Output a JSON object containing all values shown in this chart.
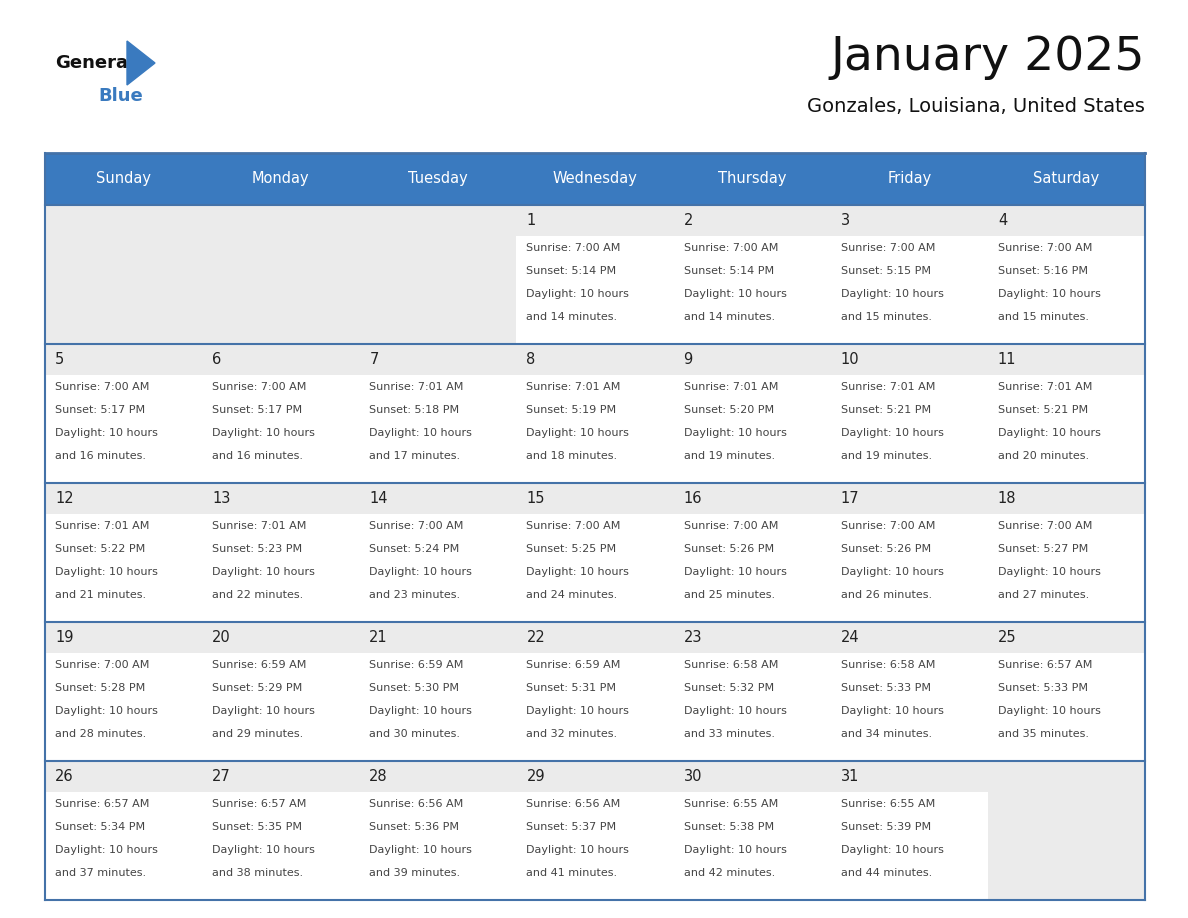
{
  "title": "January 2025",
  "subtitle": "Gonzales, Louisiana, United States",
  "header_color": "#3a7abf",
  "header_text_color": "#ffffff",
  "day_names": [
    "Sunday",
    "Monday",
    "Tuesday",
    "Wednesday",
    "Thursday",
    "Friday",
    "Saturday"
  ],
  "cell_bg_color": "#ebebeb",
  "cell_content_bg": "#ffffff",
  "border_color": "#4472a8",
  "text_color": "#333333",
  "day_num_color": "#222222",
  "logo_general_color": "#111111",
  "logo_blue_color": "#3a7abf",
  "days": [
    {
      "date": 1,
      "col": 3,
      "row": 0,
      "sunrise": "7:00 AM",
      "sunset": "5:14 PM",
      "daylight_hours": 10,
      "daylight_minutes": 14
    },
    {
      "date": 2,
      "col": 4,
      "row": 0,
      "sunrise": "7:00 AM",
      "sunset": "5:14 PM",
      "daylight_hours": 10,
      "daylight_minutes": 14
    },
    {
      "date": 3,
      "col": 5,
      "row": 0,
      "sunrise": "7:00 AM",
      "sunset": "5:15 PM",
      "daylight_hours": 10,
      "daylight_minutes": 15
    },
    {
      "date": 4,
      "col": 6,
      "row": 0,
      "sunrise": "7:00 AM",
      "sunset": "5:16 PM",
      "daylight_hours": 10,
      "daylight_minutes": 15
    },
    {
      "date": 5,
      "col": 0,
      "row": 1,
      "sunrise": "7:00 AM",
      "sunset": "5:17 PM",
      "daylight_hours": 10,
      "daylight_minutes": 16
    },
    {
      "date": 6,
      "col": 1,
      "row": 1,
      "sunrise": "7:00 AM",
      "sunset": "5:17 PM",
      "daylight_hours": 10,
      "daylight_minutes": 16
    },
    {
      "date": 7,
      "col": 2,
      "row": 1,
      "sunrise": "7:01 AM",
      "sunset": "5:18 PM",
      "daylight_hours": 10,
      "daylight_minutes": 17
    },
    {
      "date": 8,
      "col": 3,
      "row": 1,
      "sunrise": "7:01 AM",
      "sunset": "5:19 PM",
      "daylight_hours": 10,
      "daylight_minutes": 18
    },
    {
      "date": 9,
      "col": 4,
      "row": 1,
      "sunrise": "7:01 AM",
      "sunset": "5:20 PM",
      "daylight_hours": 10,
      "daylight_minutes": 19
    },
    {
      "date": 10,
      "col": 5,
      "row": 1,
      "sunrise": "7:01 AM",
      "sunset": "5:21 PM",
      "daylight_hours": 10,
      "daylight_minutes": 19
    },
    {
      "date": 11,
      "col": 6,
      "row": 1,
      "sunrise": "7:01 AM",
      "sunset": "5:21 PM",
      "daylight_hours": 10,
      "daylight_minutes": 20
    },
    {
      "date": 12,
      "col": 0,
      "row": 2,
      "sunrise": "7:01 AM",
      "sunset": "5:22 PM",
      "daylight_hours": 10,
      "daylight_minutes": 21
    },
    {
      "date": 13,
      "col": 1,
      "row": 2,
      "sunrise": "7:01 AM",
      "sunset": "5:23 PM",
      "daylight_hours": 10,
      "daylight_minutes": 22
    },
    {
      "date": 14,
      "col": 2,
      "row": 2,
      "sunrise": "7:00 AM",
      "sunset": "5:24 PM",
      "daylight_hours": 10,
      "daylight_minutes": 23
    },
    {
      "date": 15,
      "col": 3,
      "row": 2,
      "sunrise": "7:00 AM",
      "sunset": "5:25 PM",
      "daylight_hours": 10,
      "daylight_minutes": 24
    },
    {
      "date": 16,
      "col": 4,
      "row": 2,
      "sunrise": "7:00 AM",
      "sunset": "5:26 PM",
      "daylight_hours": 10,
      "daylight_minutes": 25
    },
    {
      "date": 17,
      "col": 5,
      "row": 2,
      "sunrise": "7:00 AM",
      "sunset": "5:26 PM",
      "daylight_hours": 10,
      "daylight_minutes": 26
    },
    {
      "date": 18,
      "col": 6,
      "row": 2,
      "sunrise": "7:00 AM",
      "sunset": "5:27 PM",
      "daylight_hours": 10,
      "daylight_minutes": 27
    },
    {
      "date": 19,
      "col": 0,
      "row": 3,
      "sunrise": "7:00 AM",
      "sunset": "5:28 PM",
      "daylight_hours": 10,
      "daylight_minutes": 28
    },
    {
      "date": 20,
      "col": 1,
      "row": 3,
      "sunrise": "6:59 AM",
      "sunset": "5:29 PM",
      "daylight_hours": 10,
      "daylight_minutes": 29
    },
    {
      "date": 21,
      "col": 2,
      "row": 3,
      "sunrise": "6:59 AM",
      "sunset": "5:30 PM",
      "daylight_hours": 10,
      "daylight_minutes": 30
    },
    {
      "date": 22,
      "col": 3,
      "row": 3,
      "sunrise": "6:59 AM",
      "sunset": "5:31 PM",
      "daylight_hours": 10,
      "daylight_minutes": 32
    },
    {
      "date": 23,
      "col": 4,
      "row": 3,
      "sunrise": "6:58 AM",
      "sunset": "5:32 PM",
      "daylight_hours": 10,
      "daylight_minutes": 33
    },
    {
      "date": 24,
      "col": 5,
      "row": 3,
      "sunrise": "6:58 AM",
      "sunset": "5:33 PM",
      "daylight_hours": 10,
      "daylight_minutes": 34
    },
    {
      "date": 25,
      "col": 6,
      "row": 3,
      "sunrise": "6:57 AM",
      "sunset": "5:33 PM",
      "daylight_hours": 10,
      "daylight_minutes": 35
    },
    {
      "date": 26,
      "col": 0,
      "row": 4,
      "sunrise": "6:57 AM",
      "sunset": "5:34 PM",
      "daylight_hours": 10,
      "daylight_minutes": 37
    },
    {
      "date": 27,
      "col": 1,
      "row": 4,
      "sunrise": "6:57 AM",
      "sunset": "5:35 PM",
      "daylight_hours": 10,
      "daylight_minutes": 38
    },
    {
      "date": 28,
      "col": 2,
      "row": 4,
      "sunrise": "6:56 AM",
      "sunset": "5:36 PM",
      "daylight_hours": 10,
      "daylight_minutes": 39
    },
    {
      "date": 29,
      "col": 3,
      "row": 4,
      "sunrise": "6:56 AM",
      "sunset": "5:37 PM",
      "daylight_hours": 10,
      "daylight_minutes": 41
    },
    {
      "date": 30,
      "col": 4,
      "row": 4,
      "sunrise": "6:55 AM",
      "sunset": "5:38 PM",
      "daylight_hours": 10,
      "daylight_minutes": 42
    },
    {
      "date": 31,
      "col": 5,
      "row": 4,
      "sunrise": "6:55 AM",
      "sunset": "5:39 PM",
      "daylight_hours": 10,
      "daylight_minutes": 44
    }
  ]
}
